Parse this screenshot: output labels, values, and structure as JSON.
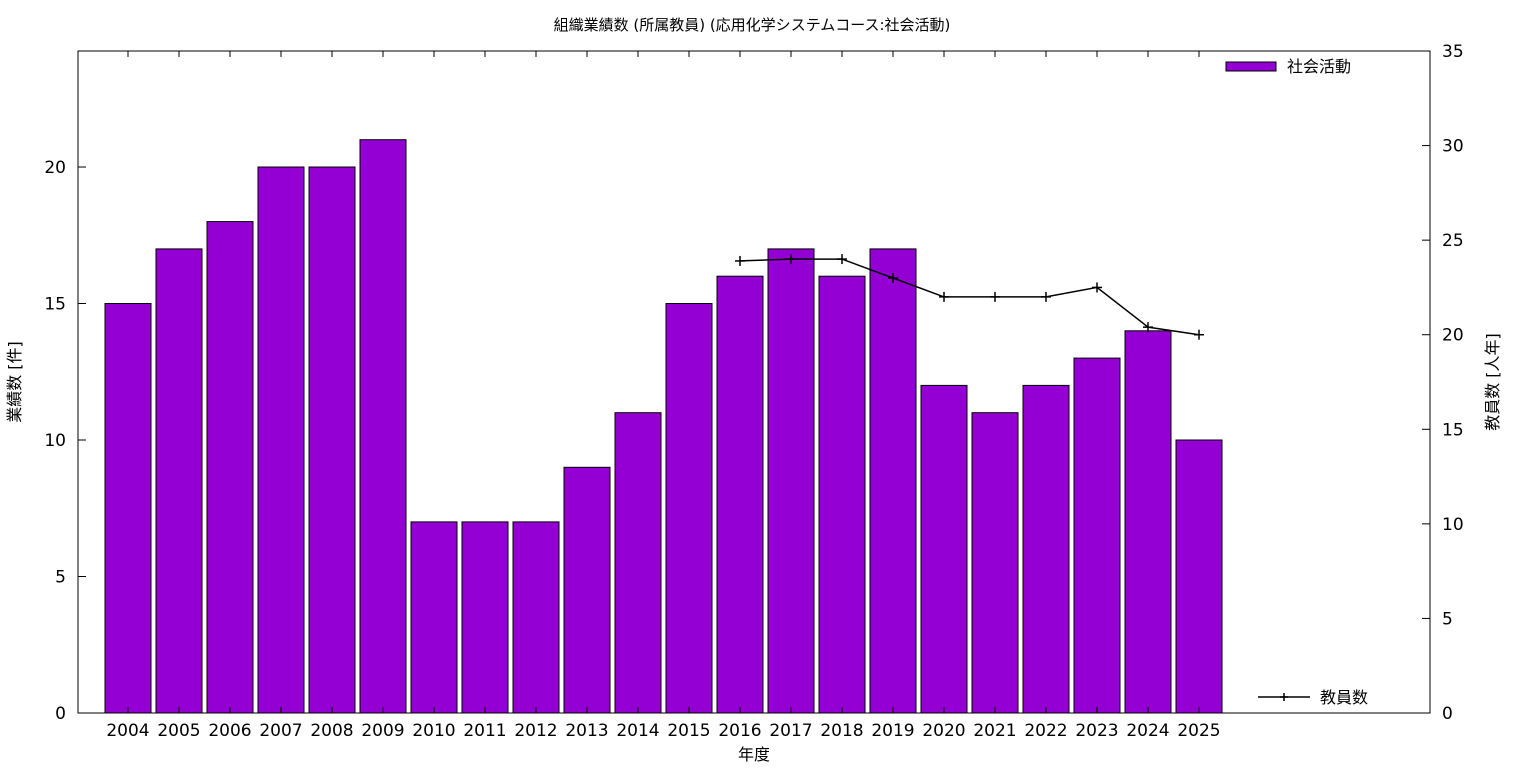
{
  "chart_data": {
    "type": "bar",
    "title": "組織業績数 (所属教員) (応用化学システムコース:社会活動)",
    "xlabel": "年度",
    "ylabel": "業績数 [件]",
    "y2label": "教員数 [人年]",
    "categories": [
      "2004",
      "2005",
      "2006",
      "2007",
      "2008",
      "2009",
      "2010",
      "2011",
      "2012",
      "2013",
      "2014",
      "2015",
      "2016",
      "2017",
      "2018",
      "2019",
      "2020",
      "2021",
      "2022",
      "2023",
      "2024",
      "2025"
    ],
    "ylim": [
      0,
      24.25
    ],
    "y2lim": [
      0,
      35
    ],
    "yticks": [
      0,
      5,
      10,
      15,
      20
    ],
    "y2ticks": [
      0,
      5,
      10,
      15,
      20,
      25,
      30,
      35
    ],
    "series": [
      {
        "name": "社会活動",
        "type": "bar",
        "axis": "left",
        "color": "#9400d3",
        "values": [
          15,
          17,
          18,
          20,
          20,
          21,
          7,
          7,
          7,
          9,
          11,
          15,
          16,
          17,
          16,
          17,
          12,
          11,
          12,
          13,
          14,
          10
        ]
      },
      {
        "name": "教員数",
        "type": "line",
        "axis": "right",
        "color": "#000000",
        "x": [
          "2016",
          "2017",
          "2018",
          "2019",
          "2020",
          "2021",
          "2022",
          "2023",
          "2024",
          "2025"
        ],
        "values": [
          23.9,
          24,
          24,
          23,
          22,
          22,
          22,
          22.5,
          20.4,
          20
        ]
      }
    ],
    "legend": "top-right (bars), bottom-right (line)",
    "grid": false
  }
}
